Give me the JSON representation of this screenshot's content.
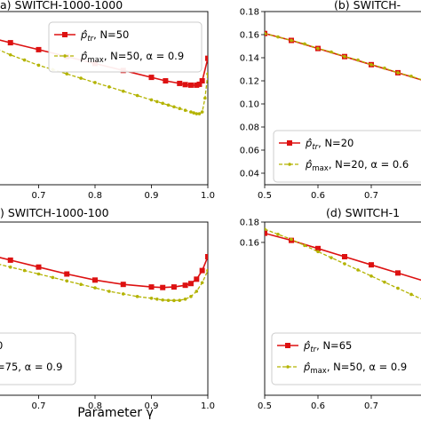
{
  "figure": {
    "xlabel": "Parameter γ"
  },
  "chart_data": [
    {
      "type": "line",
      "title": "a) SWITCH-1000-1000",
      "xlim": [
        0.6,
        1.0
      ],
      "ylim": [
        0,
        1
      ],
      "x_ticks": [
        "0.7",
        "0.8",
        "0.9",
        "1.0"
      ],
      "y_ticks": [],
      "grid": false,
      "legend_placement": "top-right",
      "colors": {
        "tr": "#dd1111",
        "max": "#b3b300"
      },
      "series": [
        {
          "name": "p̂_tr, N=50",
          "legend": [
            "p̂",
            "tr",
            ", N=50"
          ],
          "style": "tr",
          "x": [
            0.6,
            0.65,
            0.7,
            0.75,
            0.8,
            0.85,
            0.9,
            0.925,
            0.95,
            0.96,
            0.97,
            0.98,
            0.985,
            0.99,
            1.0
          ],
          "y": [
            0.86,
            0.82,
            0.78,
            0.74,
            0.7,
            0.66,
            0.62,
            0.6,
            0.585,
            0.578,
            0.575,
            0.575,
            0.58,
            0.6,
            0.73
          ]
        },
        {
          "name": "p̂_max, N=50, α = 0.9",
          "legend": [
            "p̂",
            "max",
            ", N=50, α = 0.9"
          ],
          "style": "max",
          "x": [
            0.6,
            0.625,
            0.65,
            0.675,
            0.7,
            0.725,
            0.75,
            0.775,
            0.8,
            0.825,
            0.85,
            0.875,
            0.9,
            0.91,
            0.92,
            0.93,
            0.94,
            0.95,
            0.96,
            0.97,
            0.975,
            0.98,
            0.985,
            0.99,
            0.995,
            1.0
          ],
          "y": [
            0.82,
            0.785,
            0.75,
            0.72,
            0.69,
            0.665,
            0.64,
            0.615,
            0.59,
            0.565,
            0.54,
            0.515,
            0.49,
            0.48,
            0.47,
            0.46,
            0.45,
            0.44,
            0.43,
            0.42,
            0.415,
            0.41,
            0.41,
            0.42,
            0.5,
            0.64
          ]
        }
      ]
    },
    {
      "type": "line",
      "title": "(b) SWITCH-",
      "xlim": [
        0.5,
        0.82
      ],
      "ylim": [
        0.03,
        0.18
      ],
      "x_ticks": [
        "0.5",
        "0.6",
        "0.7"
      ],
      "y_ticks": [
        "0.04",
        "0.06",
        "0.08",
        "0.10",
        "0.12",
        "0.14",
        "0.16",
        "0.18"
      ],
      "grid": false,
      "legend_placement": "bottom-right",
      "colors": {
        "tr": "#dd1111",
        "max": "#b3b300"
      },
      "series": [
        {
          "name": "p̂_tr, N=20",
          "legend": [
            "p̂",
            "tr",
            ", N=20"
          ],
          "style": "tr",
          "x": [
            0.5,
            0.55,
            0.6,
            0.65,
            0.7,
            0.75,
            0.8
          ],
          "y": [
            0.161,
            0.155,
            0.148,
            0.141,
            0.134,
            0.127,
            0.12
          ]
        },
        {
          "name": "p̂_max, N=20, α = 0.6",
          "legend": [
            "p̂",
            "max",
            ", N=20, α = 0.6"
          ],
          "style": "max",
          "x": [
            0.5,
            0.525,
            0.55,
            0.575,
            0.6,
            0.625,
            0.65,
            0.675,
            0.7,
            0.725,
            0.75,
            0.775,
            0.8
          ],
          "y": [
            0.161,
            0.158,
            0.155,
            0.152,
            0.148,
            0.145,
            0.141,
            0.138,
            0.134,
            0.131,
            0.127,
            0.124,
            0.12
          ]
        }
      ]
    },
    {
      "type": "line",
      "title": ") SWITCH-1000-100",
      "xlim": [
        0.6,
        1.0
      ],
      "ylim": [
        0,
        1
      ],
      "x_ticks": [
        "0.7",
        "0.8",
        "0.9",
        "1.0"
      ],
      "y_ticks": [],
      "grid": false,
      "legend_placement": "bottom-left",
      "colors": {
        "tr": "#dd1111",
        "max": "#b3b300"
      },
      "series": [
        {
          "name": "…0",
          "legend": [
            "",
            "",
            "0"
          ],
          "style": "tr",
          "x": [
            0.6,
            0.65,
            0.7,
            0.75,
            0.8,
            0.85,
            0.9,
            0.92,
            0.94,
            0.96,
            0.97,
            0.98,
            0.99,
            1.0
          ],
          "y": [
            0.82,
            0.78,
            0.74,
            0.7,
            0.665,
            0.64,
            0.625,
            0.622,
            0.625,
            0.635,
            0.645,
            0.67,
            0.72,
            0.8
          ]
        },
        {
          "name": "…=75, α = 0.9",
          "legend": [
            "",
            "",
            "=75, α = 0.9"
          ],
          "style": "max",
          "x": [
            0.6,
            0.625,
            0.65,
            0.675,
            0.7,
            0.725,
            0.75,
            0.775,
            0.8,
            0.825,
            0.85,
            0.875,
            0.9,
            0.91,
            0.92,
            0.93,
            0.94,
            0.95,
            0.96,
            0.97,
            0.98,
            0.99,
            1.0
          ],
          "y": [
            0.78,
            0.76,
            0.74,
            0.72,
            0.7,
            0.68,
            0.66,
            0.64,
            0.62,
            0.6,
            0.585,
            0.57,
            0.56,
            0.555,
            0.55,
            0.548,
            0.547,
            0.548,
            0.555,
            0.57,
            0.6,
            0.65,
            0.72
          ]
        }
      ]
    },
    {
      "type": "line",
      "title": "(d) SWITCH-1",
      "xlim": [
        0.5,
        0.82
      ],
      "ylim": [
        0.01,
        0.18
      ],
      "x_ticks": [
        "0.5",
        "0.6",
        "0.7"
      ],
      "y_ticks": [
        "0.16",
        "0.18"
      ],
      "grid": false,
      "legend_placement": "bottom-right",
      "colors": {
        "tr": "#dd1111",
        "max": "#b3b300"
      },
      "series": [
        {
          "name": "p̂_tr, N=65",
          "legend": [
            "p̂",
            "tr",
            ", N=65"
          ],
          "style": "tr",
          "x": [
            0.5,
            0.55,
            0.6,
            0.65,
            0.7,
            0.75,
            0.8
          ],
          "y": [
            0.169,
            0.162,
            0.154,
            0.146,
            0.138,
            0.13,
            0.122
          ]
        },
        {
          "name": "p̂_max, N=50, α = 0.9",
          "legend": [
            "p̂",
            "max",
            ", N=50, α = 0.9"
          ],
          "style": "max",
          "x": [
            0.5,
            0.525,
            0.55,
            0.575,
            0.6,
            0.625,
            0.65,
            0.675,
            0.7,
            0.725,
            0.75,
            0.775,
            0.8
          ],
          "y": [
            0.173,
            0.168,
            0.163,
            0.157,
            0.151,
            0.145,
            0.139,
            0.133,
            0.127,
            0.121,
            0.115,
            0.109,
            0.103
          ]
        }
      ]
    }
  ]
}
